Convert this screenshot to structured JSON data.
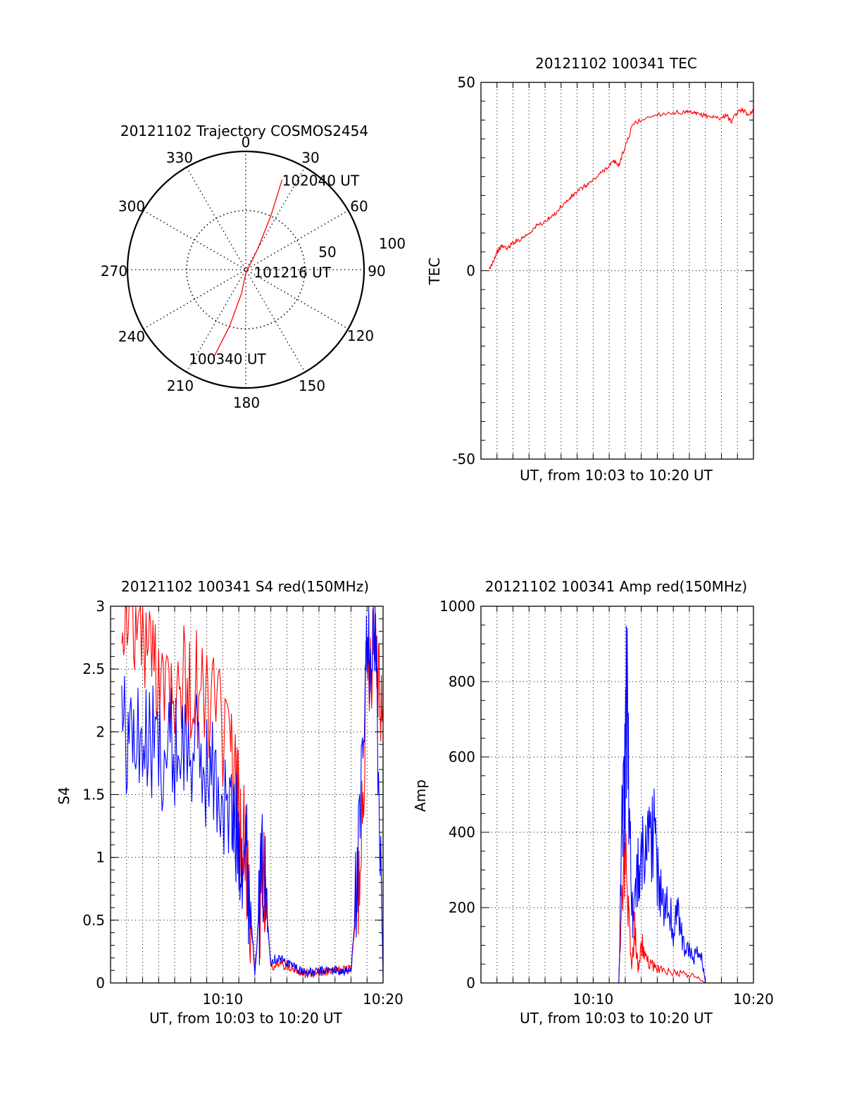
{
  "chart_data": [
    {
      "id": "trajectory",
      "type": "polar",
      "title": "20121102 Trajectory COSMOS2454",
      "angle_labels": [
        "0",
        "30",
        "60",
        "90",
        "120",
        "150",
        "180",
        "210",
        "240",
        "270",
        "300",
        "330"
      ],
      "radial_labels": [
        "50",
        "100"
      ],
      "rmax": 100,
      "direction": "clockwise-from-north",
      "series": [
        {
          "color": "#ff0000",
          "points": [
            {
              "az": 200,
              "r": 78
            },
            {
              "az": 196,
              "r": 50
            },
            {
              "az": 190,
              "r": 20
            },
            {
              "az": 180,
              "r": 3
            },
            {
              "az": 30,
              "r": 20
            },
            {
              "az": 25,
              "r": 50
            },
            {
              "az": 22,
              "r": 82
            }
          ]
        }
      ],
      "annotations": [
        {
          "text": "102040 UT",
          "az": 22,
          "r": 82
        },
        {
          "text": "101216 UT",
          "az": 90,
          "r": 2
        },
        {
          "text": "100340 UT",
          "az": 200,
          "r": 78
        }
      ]
    },
    {
      "id": "tec",
      "type": "line",
      "title": "20121102 100341 TEC",
      "xlabel": "UT, from 10:03 to 10:20 UT",
      "ylabel": "TEC",
      "xlim": [
        3.0,
        20.0
      ],
      "ylim": [
        -50,
        50
      ],
      "yticks": [
        "50",
        "0",
        "-50"
      ],
      "grid": true,
      "series": [
        {
          "color": "#ff0000",
          "x": [
            3.5,
            3.7,
            4.0,
            4.3,
            4.7,
            5.0,
            5.5,
            6.0,
            6.5,
            7.0,
            7.5,
            8.0,
            8.5,
            9.0,
            9.5,
            10.0,
            10.5,
            11.0,
            11.3,
            11.6,
            12.0,
            12.5,
            13.0,
            14.0,
            15.0,
            15.8,
            16.2,
            16.5,
            17.0,
            17.5,
            18.0,
            18.3,
            18.6,
            19.0,
            19.3,
            19.6,
            20.0
          ],
          "y": [
            0,
            2,
            5,
            6.5,
            6,
            7.5,
            8.5,
            10,
            12,
            13,
            14.5,
            17,
            19,
            21,
            22.5,
            24,
            26,
            28,
            29,
            28,
            33,
            39,
            40,
            41.5,
            42,
            42,
            41.8,
            41.6,
            41.2,
            40.8,
            40.5,
            41.5,
            39.5,
            42,
            43,
            41.5,
            42.5
          ]
        }
      ]
    },
    {
      "id": "s4",
      "type": "line",
      "title": "20121102 100341 S4 red(150MHz)",
      "xlabel": "UT, from 10:03 to 10:20 UT",
      "ylabel": "S4",
      "xlim": [
        3.0,
        20.0
      ],
      "ylim": [
        0,
        3
      ],
      "yticks": [
        "0",
        "0.5",
        "1",
        "1.5",
        "2",
        "2.5",
        "3"
      ],
      "xticks": [
        "10:10",
        "10:20"
      ],
      "grid": true,
      "series": [
        {
          "color": "#ff0000",
          "x": [
            3.7,
            4.5,
            5.5,
            6.5,
            7.5,
            8.5,
            9.5,
            10.5,
            11.0,
            11.5,
            12.0,
            12.5,
            13.0,
            13.5,
            14.0,
            14.5,
            15.0,
            15.5,
            16.0,
            16.5,
            17.0,
            17.5,
            18.0,
            18.5,
            19.0,
            19.5,
            20.0
          ],
          "y": [
            3.0,
            2.9,
            2.6,
            2.5,
            2.4,
            2.3,
            2.2,
            1.8,
            1.4,
            0.9,
            0.08,
            1.0,
            0.12,
            0.15,
            0.14,
            0.12,
            0.08,
            0.07,
            0.08,
            0.09,
            0.1,
            0.1,
            0.12,
            0.8,
            2.5,
            2.8,
            2.2
          ]
        },
        {
          "color": "#0000ff",
          "x": [
            3.7,
            4.5,
            5.5,
            6.5,
            7.5,
            8.5,
            9.5,
            10.5,
            11.0,
            11.5,
            12.0,
            12.5,
            13.0,
            13.5,
            14.0,
            14.5,
            15.0,
            15.5,
            16.0,
            16.5,
            17.0,
            17.5,
            18.0,
            18.5,
            19.0,
            19.5,
            20.0
          ],
          "y": [
            2.0,
            1.95,
            1.9,
            1.85,
            1.9,
            1.8,
            1.6,
            1.3,
            1.15,
            1.0,
            0.1,
            0.95,
            0.18,
            0.2,
            0.16,
            0.13,
            0.09,
            0.08,
            0.09,
            0.1,
            0.1,
            0.09,
            0.1,
            1.0,
            2.6,
            2.9,
            0.05
          ]
        }
      ]
    },
    {
      "id": "amp",
      "type": "line",
      "title": "20121102 100341 Amp red(150MHz)",
      "xlabel": "UT, from 10:03 to 10:20 UT",
      "ylabel": "Amp",
      "xlim": [
        3.0,
        20.0
      ],
      "ylim": [
        0,
        1000
      ],
      "yticks": [
        "0",
        "200",
        "400",
        "600",
        "800",
        "1000"
      ],
      "xticks": [
        "10:10",
        "10:20"
      ],
      "grid": true,
      "series": [
        {
          "color": "#ff0000",
          "x": [
            3.5,
            10.0,
            11.0,
            11.6,
            11.8,
            12.0,
            12.2,
            12.4,
            12.6,
            12.8,
            13.0,
            13.3,
            13.6,
            14.0,
            14.5,
            15.0,
            15.5,
            16.0,
            16.5,
            17.0,
            20.0
          ],
          "y": [
            0,
            0,
            0,
            0,
            250,
            340,
            200,
            40,
            150,
            30,
            110,
            60,
            50,
            40,
            30,
            28,
            25,
            22,
            15,
            0,
            0
          ]
        },
        {
          "color": "#0000ff",
          "x": [
            3.5,
            10.0,
            11.0,
            11.6,
            11.8,
            12.0,
            12.1,
            12.3,
            12.5,
            12.7,
            12.9,
            13.2,
            13.5,
            13.8,
            14.0,
            14.3,
            14.6,
            15.0,
            15.3,
            15.6,
            16.0,
            16.3,
            16.6,
            16.8,
            17.0,
            20.0
          ],
          "y": [
            0,
            0,
            0,
            0,
            400,
            550,
            800,
            350,
            150,
            250,
            320,
            350,
            420,
            400,
            300,
            200,
            250,
            120,
            200,
            100,
            80,
            70,
            75,
            60,
            0,
            0
          ]
        }
      ]
    }
  ]
}
